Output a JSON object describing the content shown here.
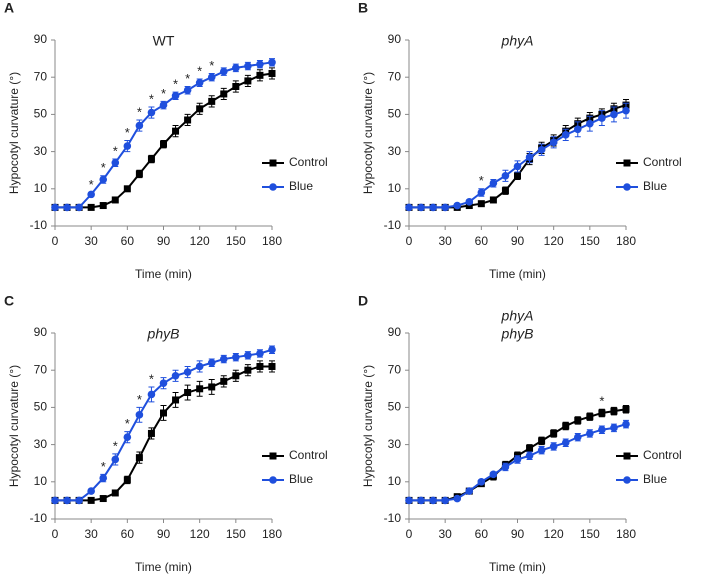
{
  "chart_data": [
    {
      "type": "line",
      "label": "A",
      "title": [
        "WT"
      ],
      "title_style": "normal",
      "xlabel": "Time (min)",
      "ylabel": "Hypocotyl curvature (°)",
      "x": [
        0,
        10,
        20,
        30,
        40,
        50,
        60,
        70,
        80,
        90,
        100,
        110,
        120,
        130,
        140,
        150,
        160,
        170,
        180
      ],
      "xlim": [
        0,
        180
      ],
      "xticks": [
        0,
        30,
        60,
        90,
        120,
        150,
        180
      ],
      "ylim": [
        -10,
        90
      ],
      "yticks": [
        -10,
        10,
        30,
        50,
        70,
        90
      ],
      "series": [
        {
          "name": "Control",
          "color": "#000000",
          "marker": "square",
          "values": [
            0,
            0,
            0,
            0,
            1,
            4,
            10,
            18,
            26,
            34,
            41,
            47,
            53,
            57,
            61,
            65,
            68,
            71,
            72
          ],
          "errors": [
            0,
            0,
            0,
            0,
            1,
            1,
            1,
            2,
            2,
            2,
            3,
            3,
            3,
            3,
            3,
            3,
            3,
            3,
            3
          ]
        },
        {
          "name": "Blue",
          "color": "#1f4fdd",
          "marker": "circle",
          "values": [
            0,
            0,
            0,
            7,
            15,
            24,
            33,
            44,
            51,
            55,
            60,
            63,
            67,
            70,
            73,
            75,
            76,
            77,
            78
          ],
          "errors": [
            0,
            0,
            0,
            1,
            2,
            2,
            3,
            3,
            3,
            2,
            2,
            2,
            2,
            2,
            2,
            2,
            2,
            2,
            2
          ]
        }
      ],
      "annotations": [
        {
          "x": 30,
          "text": "*"
        },
        {
          "x": 40,
          "text": "*"
        },
        {
          "x": 50,
          "text": "*"
        },
        {
          "x": 60,
          "text": "*"
        },
        {
          "x": 70,
          "text": "*"
        },
        {
          "x": 80,
          "text": "*"
        },
        {
          "x": 90,
          "text": "*"
        },
        {
          "x": 100,
          "text": "*"
        },
        {
          "x": 110,
          "text": "*"
        },
        {
          "x": 120,
          "text": "*"
        },
        {
          "x": 130,
          "text": "*"
        }
      ]
    },
    {
      "type": "line",
      "label": "B",
      "title": [
        "phyA"
      ],
      "title_style": "italic",
      "xlabel": "Time (min)",
      "ylabel": "Hypocotyl curvature (°)",
      "x": [
        0,
        10,
        20,
        30,
        40,
        50,
        60,
        70,
        80,
        90,
        100,
        110,
        120,
        130,
        140,
        150,
        160,
        170,
        180
      ],
      "xlim": [
        0,
        180
      ],
      "xticks": [
        0,
        30,
        60,
        90,
        120,
        150,
        180
      ],
      "ylim": [
        -10,
        90
      ],
      "yticks": [
        -10,
        10,
        30,
        50,
        70,
        90
      ],
      "series": [
        {
          "name": "Control",
          "color": "#000000",
          "marker": "square",
          "values": [
            0,
            0,
            0,
            0,
            0,
            1,
            2,
            4,
            9,
            17,
            26,
            32,
            36,
            41,
            45,
            48,
            50,
            53,
            55
          ],
          "errors": [
            0,
            0,
            0,
            0,
            0,
            1,
            1,
            1,
            2,
            2,
            3,
            3,
            3,
            3,
            3,
            3,
            3,
            3,
            3
          ]
        },
        {
          "name": "Blue",
          "color": "#1f4fdd",
          "marker": "circle",
          "values": [
            0,
            0,
            0,
            0,
            1,
            3,
            8,
            13,
            17,
            22,
            27,
            31,
            35,
            39,
            42,
            45,
            48,
            50,
            52
          ],
          "errors": [
            0,
            0,
            0,
            0,
            1,
            1,
            2,
            2,
            3,
            3,
            3,
            3,
            3,
            3,
            4,
            4,
            4,
            4,
            4
          ]
        }
      ],
      "annotations": [
        {
          "x": 60,
          "text": "*"
        }
      ]
    },
    {
      "type": "line",
      "label": "C",
      "title": [
        "phyB"
      ],
      "title_style": "italic",
      "xlabel": "Time (min)",
      "ylabel": "Hypocotyl curvature (°)",
      "x": [
        0,
        10,
        20,
        30,
        40,
        50,
        60,
        70,
        80,
        90,
        100,
        110,
        120,
        130,
        140,
        150,
        160,
        170,
        180
      ],
      "xlim": [
        0,
        180
      ],
      "xticks": [
        0,
        30,
        60,
        90,
        120,
        150,
        180
      ],
      "ylim": [
        -10,
        90
      ],
      "yticks": [
        -10,
        10,
        30,
        50,
        70,
        90
      ],
      "series": [
        {
          "name": "Control",
          "color": "#000000",
          "marker": "square",
          "values": [
            0,
            0,
            0,
            0,
            1,
            4,
            11,
            23,
            36,
            47,
            54,
            58,
            60,
            61,
            64,
            67,
            70,
            72,
            72
          ],
          "errors": [
            0,
            0,
            0,
            0,
            1,
            1,
            2,
            3,
            3,
            4,
            4,
            4,
            4,
            4,
            3,
            3,
            3,
            3,
            3
          ]
        },
        {
          "name": "Blue",
          "color": "#1f4fdd",
          "marker": "circle",
          "values": [
            0,
            0,
            0,
            5,
            12,
            22,
            34,
            46,
            57,
            63,
            67,
            69,
            72,
            74,
            76,
            77,
            78,
            79,
            81
          ],
          "errors": [
            0,
            0,
            0,
            1,
            2,
            3,
            3,
            4,
            4,
            3,
            3,
            3,
            3,
            2,
            2,
            2,
            2,
            2,
            2
          ]
        }
      ],
      "annotations": [
        {
          "x": 40,
          "text": "*"
        },
        {
          "x": 50,
          "text": "*"
        },
        {
          "x": 60,
          "text": "*"
        },
        {
          "x": 70,
          "text": "*"
        },
        {
          "x": 80,
          "text": "*"
        }
      ]
    },
    {
      "type": "line",
      "label": "D",
      "title": [
        "phyA",
        "phyB"
      ],
      "title_style": "italic",
      "xlabel": "Time (min)",
      "ylabel": "Hypocotyl curvature (°)",
      "x": [
        0,
        10,
        20,
        30,
        40,
        50,
        60,
        70,
        80,
        90,
        100,
        110,
        120,
        130,
        140,
        150,
        160,
        170,
        180
      ],
      "xlim": [
        0,
        180
      ],
      "xticks": [
        0,
        30,
        60,
        90,
        120,
        150,
        180
      ],
      "ylim": [
        -10,
        90
      ],
      "yticks": [
        -10,
        10,
        30,
        50,
        70,
        90
      ],
      "series": [
        {
          "name": "Control",
          "color": "#000000",
          "marker": "square",
          "values": [
            0,
            0,
            0,
            0,
            2,
            5,
            9,
            13,
            19,
            24,
            28,
            32,
            36,
            40,
            43,
            45,
            47,
            48,
            49
          ],
          "errors": [
            0,
            0,
            0,
            0,
            1,
            1,
            1,
            2,
            2,
            2,
            2,
            2,
            2,
            2,
            2,
            2,
            2,
            2,
            2
          ]
        },
        {
          "name": "Blue",
          "color": "#1f4fdd",
          "marker": "circle",
          "values": [
            0,
            0,
            0,
            0,
            1,
            5,
            10,
            14,
            18,
            22,
            24,
            27,
            29,
            31,
            34,
            36,
            38,
            39,
            41
          ],
          "errors": [
            0,
            0,
            0,
            0,
            1,
            1,
            1,
            1,
            2,
            2,
            2,
            2,
            2,
            2,
            2,
            2,
            2,
            2,
            2
          ]
        }
      ],
      "annotations": [
        {
          "x": 160,
          "text": "*"
        }
      ]
    }
  ]
}
